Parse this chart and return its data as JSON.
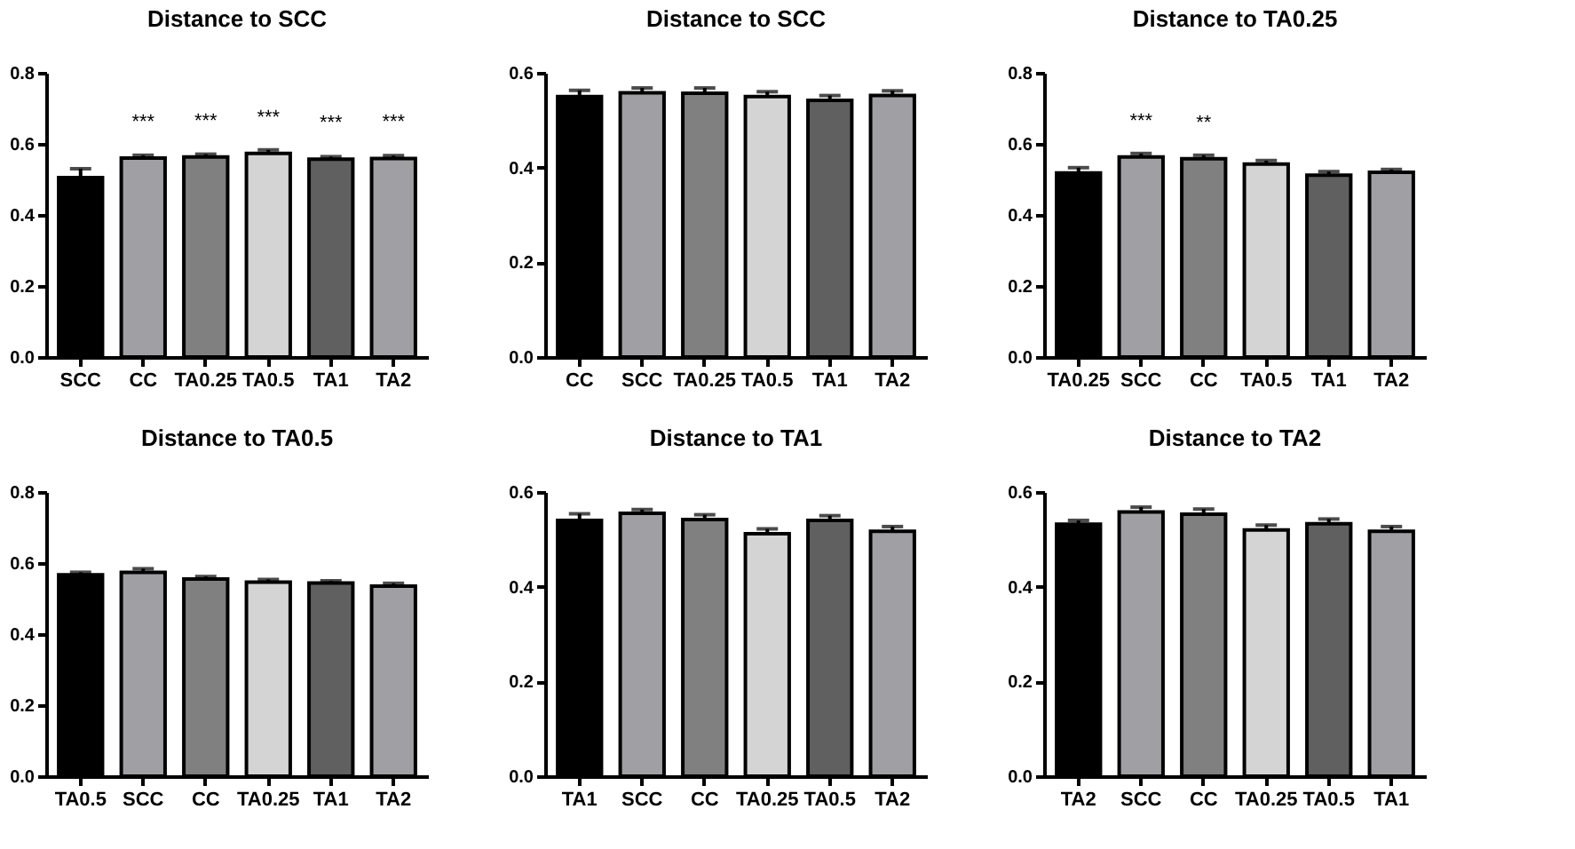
{
  "chart_data": [
    {
      "type": "bar",
      "title": "Distance to SCC",
      "categories": [
        "SCC",
        "CC",
        "TA0.25",
        "TA0.5",
        "TA1",
        "TA2"
      ],
      "values": [
        0.505,
        0.56,
        0.563,
        0.573,
        0.557,
        0.559
      ],
      "errors": [
        0.025,
        0.008,
        0.008,
        0.01,
        0.007,
        0.008
      ],
      "colors": [
        "#000000",
        "#a0a0a4",
        "#808080",
        "#d4d4d4",
        "#606060",
        "#a0a0a4"
      ],
      "ylim": [
        0,
        0.8
      ],
      "yticks": [
        {
          "value": 0,
          "label": "0.0"
        },
        {
          "value": 0.2,
          "label": "0.2"
        },
        {
          "value": 0.4,
          "label": "0.4"
        },
        {
          "value": 0.6,
          "label": "0.6"
        },
        {
          "value": 0.8,
          "label": "0.8"
        }
      ],
      "grid": false,
      "annotations": [
        {
          "text": "***",
          "x": "CC",
          "y": 0.56
        },
        {
          "text": "***",
          "x": "TA0.25",
          "y": 0.563
        },
        {
          "text": "***",
          "x": "TA0.5",
          "y": 0.573
        },
        {
          "text": "***",
          "x": "TA1",
          "y": 0.557
        },
        {
          "text": "***",
          "x": "TA2",
          "y": 0.559
        }
      ]
    },
    {
      "type": "bar",
      "title": "Distance to SCC",
      "categories": [
        "CC",
        "SCC",
        "TA0.25",
        "TA0.5",
        "TA1",
        "TA2"
      ],
      "values": [
        0.55,
        0.558,
        0.557,
        0.55,
        0.542,
        0.552
      ],
      "errors": [
        0.013,
        0.01,
        0.011,
        0.01,
        0.01,
        0.01
      ],
      "colors": [
        "#000000",
        "#a0a0a4",
        "#808080",
        "#d4d4d4",
        "#606060",
        "#a0a0a4"
      ],
      "ylim": [
        0,
        0.6
      ],
      "yticks": [
        {
          "value": 0,
          "label": "0.0"
        },
        {
          "value": 0.2,
          "label": "0.2"
        },
        {
          "value": 0.4,
          "label": "0.4"
        },
        {
          "value": 0.6,
          "label": "0.6"
        }
      ],
      "grid": false
    },
    {
      "type": "bar",
      "title": "Distance to TA0.25",
      "categories": [
        "TA0.25",
        "SCC",
        "CC",
        "TA0.5",
        "TA1",
        "TA2"
      ],
      "values": [
        0.518,
        0.563,
        0.558,
        0.543,
        0.512,
        0.52
      ],
      "errors": [
        0.015,
        0.01,
        0.01,
        0.01,
        0.01,
        0.008
      ],
      "colors": [
        "#000000",
        "#a0a0a4",
        "#808080",
        "#d4d4d4",
        "#606060",
        "#a0a0a4"
      ],
      "ylim": [
        0,
        0.8
      ],
      "yticks": [
        {
          "value": 0,
          "label": "0.0"
        },
        {
          "value": 0.2,
          "label": "0.2"
        },
        {
          "value": 0.4,
          "label": "0.4"
        },
        {
          "value": 0.6,
          "label": "0.6"
        },
        {
          "value": 0.8,
          "label": "0.8"
        }
      ],
      "grid": false,
      "annotations": [
        {
          "text": "***",
          "x": "SCC",
          "y": 0.563
        },
        {
          "text": "**",
          "x": "CC",
          "y": 0.558
        }
      ]
    },
    {
      "type": "bar",
      "title": "Distance to TA0.5",
      "categories": [
        "TA0.5",
        "SCC",
        "CC",
        "TA0.25",
        "TA1",
        "TA2"
      ],
      "values": [
        0.567,
        0.574,
        0.555,
        0.546,
        0.544,
        0.535
      ],
      "errors": [
        0.007,
        0.01,
        0.007,
        0.008,
        0.006,
        0.008
      ],
      "colors": [
        "#000000",
        "#a0a0a4",
        "#808080",
        "#d4d4d4",
        "#606060",
        "#a0a0a4"
      ],
      "ylim": [
        0,
        0.8
      ],
      "yticks": [
        {
          "value": 0,
          "label": "0.0"
        },
        {
          "value": 0.2,
          "label": "0.2"
        },
        {
          "value": 0.4,
          "label": "0.4"
        },
        {
          "value": 0.6,
          "label": "0.6"
        },
        {
          "value": 0.8,
          "label": "0.8"
        }
      ],
      "grid": false
    },
    {
      "type": "bar",
      "title": "Distance to TA1",
      "categories": [
        "TA1",
        "SCC",
        "CC",
        "TA0.25",
        "TA0.5",
        "TA2"
      ],
      "values": [
        0.54,
        0.555,
        0.542,
        0.512,
        0.54,
        0.517
      ],
      "errors": [
        0.014,
        0.008,
        0.01,
        0.01,
        0.01,
        0.01
      ],
      "colors": [
        "#000000",
        "#a0a0a4",
        "#808080",
        "#d4d4d4",
        "#606060",
        "#a0a0a4"
      ],
      "ylim": [
        0,
        0.6
      ],
      "yticks": [
        {
          "value": 0,
          "label": "0.0"
        },
        {
          "value": 0.2,
          "label": "0.2"
        },
        {
          "value": 0.4,
          "label": "0.4"
        },
        {
          "value": 0.6,
          "label": "0.6"
        }
      ],
      "grid": false
    },
    {
      "type": "bar",
      "title": "Distance to TA2",
      "categories": [
        "TA2",
        "SCC",
        "CC",
        "TA0.25",
        "TA0.5",
        "TA1"
      ],
      "values": [
        0.532,
        0.558,
        0.553,
        0.52,
        0.533,
        0.517
      ],
      "errors": [
        0.008,
        0.01,
        0.011,
        0.01,
        0.01,
        0.01
      ],
      "colors": [
        "#000000",
        "#a0a0a4",
        "#808080",
        "#d4d4d4",
        "#606060",
        "#a0a0a4"
      ],
      "ylim": [
        0,
        0.6
      ],
      "yticks": [
        {
          "value": 0,
          "label": "0.0"
        },
        {
          "value": 0.2,
          "label": "0.2"
        },
        {
          "value": 0.4,
          "label": "0.4"
        },
        {
          "value": 0.6,
          "label": "0.6"
        }
      ],
      "grid": false
    }
  ]
}
